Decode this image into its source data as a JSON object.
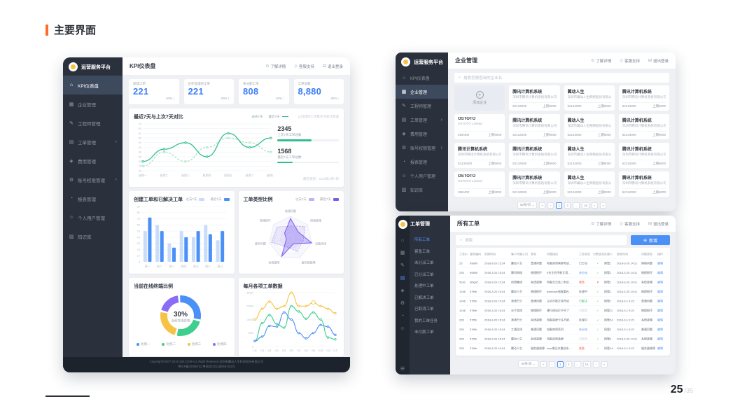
{
  "slide": {
    "title": "主要界面",
    "page_current": "25",
    "page_total": "/35",
    "accent_color": "#ff6b2c"
  },
  "common": {
    "brand": "运营服务平台",
    "links": [
      {
        "icon": "info-circle-icon",
        "glyph": "⊙",
        "label": "了解详情"
      },
      {
        "icon": "support-icon",
        "glyph": "◇",
        "label": "客服支持"
      },
      {
        "icon": "logout-icon",
        "glyph": "⊟",
        "label": "退出登录"
      }
    ],
    "menu": [
      {
        "glyph": "⌂",
        "label": "KPI仪表盘"
      },
      {
        "glyph": "▦",
        "label": "企业管理"
      },
      {
        "glyph": "✎",
        "label": "工程师管理"
      },
      {
        "glyph": "▤",
        "label": "工单管理",
        "chevron": "›"
      },
      {
        "glyph": "◈",
        "label": "费用管理"
      },
      {
        "glyph": "⚙",
        "label": "账号权限管理",
        "chevron": "›"
      },
      {
        "glyph": "◔",
        "label": "报表管理"
      },
      {
        "glyph": "☺",
        "label": "个人用户管理"
      },
      {
        "glyph": "▧",
        "label": "知识库"
      }
    ],
    "page_size": "50条/页",
    "pages": [
      "1",
      "2",
      "...",
      "16"
    ]
  },
  "kpi": {
    "page_title": "KPI仪表盘",
    "cards": [
      {
        "label": "新建工单",
        "value": "221",
        "delta": "20%",
        "dir": "up"
      },
      {
        "label": "正在处理的工单",
        "value": "221",
        "delta": "20%",
        "dir": "up"
      },
      {
        "label": "未分配工单",
        "value": "808",
        "delta": "20%",
        "dir": "down"
      },
      {
        "label": "工单总数",
        "value": "8,880",
        "delta": "20%",
        "dir": "down"
      }
    ],
    "footer": [
      "Copyright©2007-2018 160.COM ALL Right Reserved 深圳市翼动人生科技股份有限公司",
      "粤ICP备10006742 粤网文[2012]0050-012号"
    ]
  },
  "enterprise": {
    "page_title": "企业管理",
    "search_placeholder": "搜索您想查询的企业名",
    "cards": [
      {
        "kind": "add",
        "label": "添加企业"
      },
      {
        "kind": "co",
        "title": "腾讯计算机系统",
        "company": "深圳市腾讯计算机系统有限公司",
        "num": "52134000",
        "prev": "上期9000"
      },
      {
        "kind": "co",
        "title": "翼动人生",
        "company": "深圳市翼动人生网络股份有限公司",
        "num": "52134000",
        "prev": "上期9000"
      },
      {
        "kind": "co",
        "title": "腾讯计算机系统",
        "company": "深圳市腾讯计算机系统有限公司",
        "num": "52134000",
        "prev": "上期9000"
      },
      {
        "kind": "co",
        "title": "OSTOTO",
        "company": "OSTOTO Limited",
        "num": "265/400",
        "prev": "上期9000"
      },
      {
        "kind": "co",
        "title": "腾讯计算机系统",
        "company": "深圳市腾讯计算机系统有限公司",
        "num": "52134000",
        "prev": "上期9000"
      },
      {
        "kind": "co",
        "title": "翼动人生",
        "company": "深圳市翼动人生网络股份有限公司",
        "num": "52134000",
        "prev": "上期9000"
      },
      {
        "kind": "co",
        "title": "腾讯计算机系统",
        "company": "深圳市腾讯计算机系统有限公司",
        "num": "52134000",
        "prev": "上期9000"
      },
      {
        "kind": "co",
        "title": "腾讯计算机系统",
        "company": "深圳市腾讯计算机系统有限公司",
        "num": "52134000",
        "prev": "上期9000"
      },
      {
        "kind": "co",
        "title": "腾讯计算机系统",
        "company": "深圳市腾讯计算机系统有限公司",
        "num": "52134000",
        "prev": "上期9000"
      },
      {
        "kind": "co",
        "title": "翼动人生",
        "company": "深圳市翼动人生网络股份有限公司",
        "num": "52134000",
        "prev": "上期9000"
      },
      {
        "kind": "co",
        "title": "腾讯计算机系统",
        "company": "深圳市腾讯计算机系统有限公司",
        "num": "52134000",
        "prev": "上期9000"
      },
      {
        "kind": "co",
        "title": "OSTOTO",
        "company": "OSTOTO Limited",
        "num": "265/400",
        "prev": "上期9000"
      },
      {
        "kind": "co",
        "title": "腾讯计算机系统",
        "company": "深圳市腾讯计算机系统有限公司",
        "num": "52134000",
        "prev": "上期9000"
      },
      {
        "kind": "co",
        "title": "翼动人生",
        "company": "深圳市翼动人生网络股份有限公司",
        "num": "52134000",
        "prev": "上期9000"
      },
      {
        "kind": "co",
        "title": "腾讯计算机系统",
        "company": "深圳市腾讯计算机系统有限公司",
        "num": "52134000",
        "prev": "上期9000"
      }
    ]
  },
  "workorder": {
    "brand": "工单管理",
    "page_title": "所有工单",
    "search_placeholder": "搜索",
    "new_button": "新增",
    "rail_icons": [
      "⌂",
      "▦",
      "✎",
      "▤",
      "◈",
      "⚙",
      "◔",
      "☺"
    ],
    "rail_bottom_icon": "☰",
    "submenu": [
      "所有工单",
      "紧急工单",
      "未分派工单",
      "已分派工单",
      "处理中工单",
      "已解决工单",
      "已取消工单",
      "我的工单任务",
      "未付款工单"
    ],
    "columns": [
      "工单ID",
      "服务编码",
      "创建时间",
      "客户所属公司",
      "类型",
      "问题描述",
      "工单状态",
      "付费状态",
      "处理人",
      "更新时间",
      "问题类型",
      "操作"
    ],
    "op_label": "编辑",
    "rows": [
      {
        "id": "25",
        "code": "69890",
        "created": "2018-3-20 15:24",
        "company": "翼动人生",
        "type": "普通问题",
        "desc": "电脑突然黑屏死机...",
        "status": "已分派",
        "status_color": "#5f6b7a",
        "pay": "✓",
        "pay_color": "#38c172",
        "handler": "网管1",
        "updated": "2018-3-20 14:11",
        "ptype": "网络问题"
      },
      {
        "id": "235",
        "code": "69890",
        "created": "2018-3-20 15:24",
        "company": "腾讯网络",
        "type": "物理损坏",
        "desc": "5台主机不能正常...",
        "status": "未分派",
        "status_color": "#4a90f7",
        "pay": "✓",
        "pay_color": "#38c172",
        "handler": "网管1",
        "updated": "2018-3-20 14:11",
        "ptype": "物理损坏"
      },
      {
        "id": "5142",
        "code": "dfhghf",
        "created": "2018-3-20 15:24",
        "company": "创想集团",
        "type": "系统故障",
        "desc": "电脑无法连上附近...",
        "status": "紧急",
        "status_color": "#f5483b",
        "pay": "✗",
        "pay_color": "#f5483b",
        "handler": "网管1",
        "updated": "2018-3-20 14:11",
        "ptype": "系统故障"
      },
      {
        "id": "1246",
        "code": "57tfth",
        "created": "2018-3-20 15:24",
        "company": "翼动人生",
        "type": "物理损坏",
        "desc": "windows电脑重启...",
        "status": "处理中",
        "status_color": "#5f6b7a",
        "pay": "✓",
        "pay_color": "#38c172",
        "handler": "网管1",
        "updated": "2018-3-20 14:11",
        "ptype": "物理损坏"
      },
      {
        "id": "1246",
        "code": "57tfth",
        "created": "2018-3-20 15:24",
        "company": "滴滴巴士",
        "type": "普通问题",
        "desc": "主机不能正常开机",
        "status": "已解决",
        "status_color": "#38c172",
        "pay": "✓",
        "pay_color": "#38c172",
        "handler": "网管1",
        "updated": "2018-3-1 9:22",
        "ptype": "普通问题"
      },
      {
        "id": "1246",
        "code": "57tfth",
        "created": "2018-3-20 15:24",
        "company": "光子游戏",
        "type": "物理损坏",
        "desc": "建行网站打不开了",
        "status": "已取消",
        "status_color": "#c0c7d1",
        "pay": "✓",
        "pay_color": "#38c172",
        "handler": "网管11",
        "updated": "2018-3-1 9:22",
        "ptype": "物理损坏"
      },
      {
        "id": "235",
        "code": "57tfth",
        "created": "2018-3-20 15:24",
        "company": "滴滴巴士",
        "type": "系统故障",
        "desc": "电脑蓝屏卡住不能...",
        "status": "处理中",
        "status_color": "#5f6b7a",
        "pay": "✓",
        "pay_color": "#38c172",
        "handler": "网管24",
        "updated": "2018-3-1 9:22",
        "ptype": "系统故障"
      },
      {
        "id": "235",
        "code": "57tfth",
        "created": "2018-3-20 15:24",
        "company": "工通总线",
        "type": "普通问题",
        "desc": "电脑突然死机",
        "status": "未分派",
        "status_color": "#4a90f7",
        "pay": "✓",
        "pay_color": "#38c172",
        "handler": "网管2",
        "updated": "2018-3-1 9:22",
        "ptype": "普通问题"
      },
      {
        "id": "235",
        "code": "57tfth",
        "created": "2018-3-20 15:24",
        "company": "翼动人生",
        "type": "系统故障",
        "desc": "电脑突然蓝屏",
        "status": "已取消",
        "status_color": "#c0c7d1",
        "pay": "✓",
        "pay_color": "#38c172",
        "handler": "网管3",
        "updated": "2018-3-20 14:11",
        "ptype": "系统故障"
      },
      {
        "id": "235",
        "code": "57tfth",
        "created": "2018-3-20 15:24",
        "company": "翼动人生",
        "type": "服务器故障",
        "desc": "mac笔记本重启系...",
        "status": "紧急",
        "status_color": "#f5483b",
        "pay": "✓",
        "pay_color": "#38c172",
        "handler": "网管14",
        "updated": "2018-3-1 9:22",
        "ptype": "服务器故障"
      }
    ]
  },
  "chart_data": [
    {
      "id": "weekly",
      "type": "line",
      "title": "最近7天与上次7天对比",
      "x": [
        "星期一",
        "星期二",
        "星期三",
        "星期四",
        "星期五",
        "星期六",
        "星期日"
      ],
      "series": [
        {
          "name": "过去7天",
          "values": [
            25,
            40,
            30,
            45,
            55,
            50,
            40
          ],
          "color": "#a9e3c5",
          "dashed": true,
          "markers": true
        },
        {
          "name": "最近7天",
          "values": [
            30,
            43,
            50,
            35,
            60,
            45,
            55
          ],
          "color": "#2fbf8f",
          "dashed": false,
          "markers": true
        }
      ],
      "ylim": [
        20,
        70
      ],
      "ystep": 5,
      "grid": true,
      "legend_position": "top",
      "note": "以创建的工单数作为统计数值",
      "stats": [
        {
          "value": "2345",
          "label": "上次7天工单总数",
          "pct": 55
        },
        {
          "value": "1568",
          "label": "最近7天工单总数",
          "pct": 25
        }
      ],
      "updated": "最近更新：2018年4月7日"
    },
    {
      "id": "bars",
      "type": "bar",
      "title": "创建工单和已解决工单",
      "categories": [
        "周一",
        "周二",
        "周三",
        "周四",
        "周五",
        "周六",
        "周日"
      ],
      "series": [
        {
          "name": "过去7天",
          "values": [
            50,
            60,
            30,
            50,
            40,
            60,
            35
          ],
          "color": "#c9ddfb"
        },
        {
          "name": "最近7天",
          "values": [
            72,
            50,
            23,
            40,
            50,
            45,
            50
          ],
          "color": "#4a90f7"
        }
      ],
      "ylim": [
        0,
        90
      ],
      "ystep": 10,
      "grid": true,
      "legend_position": "top"
    },
    {
      "id": "radar",
      "type": "radar",
      "title": "工单类型比例",
      "axes": [
        "普通问题",
        "网络故障",
        "设备检修",
        "服务器故障",
        "系统故障",
        "使用问题",
        "物理损坏"
      ],
      "series": [
        {
          "name": "过去7天",
          "values": [
            55,
            85,
            60,
            70,
            45,
            90,
            80
          ],
          "color": "#c0b3f3",
          "fill": "rgba(192,179,243,0.30)",
          "dashed": true
        },
        {
          "name": "最近7天",
          "values": [
            90,
            45,
            100,
            30,
            95,
            20,
            35
          ],
          "color": "#7c5cf0",
          "fill": "rgba(124,92,240,0.35)",
          "dashed": false
        }
      ],
      "max": 100,
      "legend_position": "top"
    },
    {
      "id": "donut",
      "type": "pie",
      "title": "当前在线终端比例",
      "center_value": "30%",
      "center_label": "当前在线终端",
      "slices": [
        {
          "name": "比例一",
          "value": 30,
          "color": "#4a90f7"
        },
        {
          "name": "比例二",
          "value": 25,
          "color": "#3ecf8e"
        },
        {
          "name": "比例三",
          "value": 25,
          "color": "#f6c344"
        },
        {
          "name": "比例四",
          "value": 20,
          "color": "#8b6cf6"
        }
      ],
      "legend_position": "bottom"
    },
    {
      "id": "monthly",
      "type": "line",
      "title": "每月各项工单数据",
      "x": [
        "1月",
        "2月",
        "3月",
        "4月",
        "5月",
        "6月",
        "7月",
        "8月",
        "9月",
        "10月",
        "11月",
        "12月"
      ],
      "series": [
        {
          "name": "系列一",
          "values": [
            15000,
            21000,
            25000,
            21000,
            22500,
            30000,
            22500,
            22500,
            24500,
            22500,
            21000,
            18500
          ],
          "color": "#f6c344",
          "markers": true,
          "big": 8
        },
        {
          "name": "系列二",
          "values": [
            3000,
            13000,
            17500,
            12500,
            10500,
            22500,
            19500,
            15500,
            19000,
            15000,
            5000,
            4000
          ],
          "color": "#3ecf8e",
          "markers": true
        },
        {
          "name": "系列三",
          "values": [
            3000,
            5500,
            11500,
            11000,
            19000,
            15000,
            7500,
            4500,
            7500,
            12000,
            11000,
            6500
          ],
          "color": "#4a90f7",
          "markers": true
        }
      ],
      "ylim": [
        0,
        30000
      ],
      "ystep": 7500,
      "grid": true,
      "legend_position": "none"
    }
  ]
}
